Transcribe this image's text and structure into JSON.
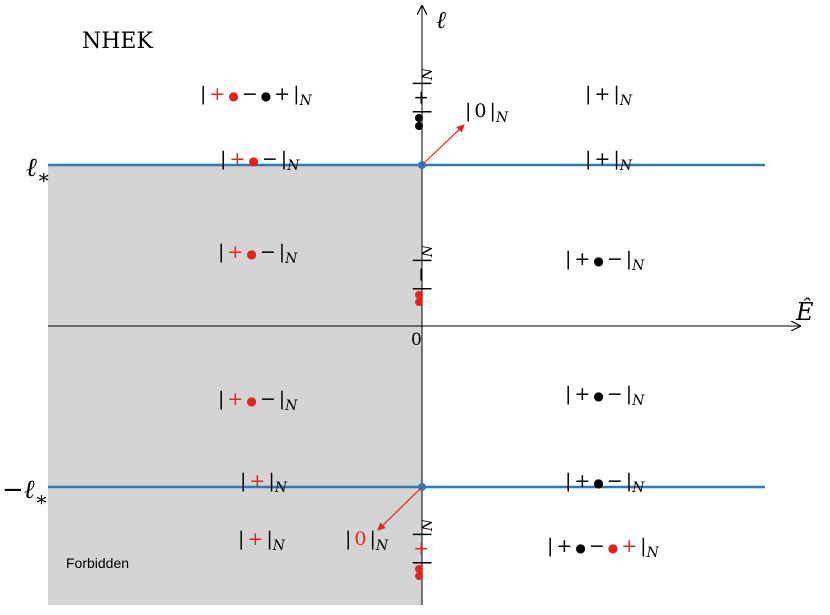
{
  "title": "NHEK",
  "axes": {
    "y_label": "ℓ",
    "x_label": "Ê",
    "origin": "0",
    "upper": {
      "text": "ℓ",
      "sub": "∗"
    },
    "lower": {
      "text": "−ℓ",
      "sub": "∗"
    }
  },
  "region": "Forbidden",
  "labels": [
    {
      "parts": [
        {
          "text": "|",
          "color": "#000"
        },
        {
          "text": "+",
          "color": "#e8231c"
        },
        {
          "text": "●",
          "color": "#e8231c"
        },
        {
          "text": "−",
          "color": "#000"
        },
        {
          "text": "●",
          "color": "#000"
        },
        {
          "text": "+",
          "color": "#000"
        },
        {
          "text": "|",
          "color": "#000"
        }
      ],
      "sub": "N"
    },
    {
      "parts": [
        {
          "text": "|",
          "color": "#000"
        },
        {
          "text": "+",
          "color": "#000"
        },
        {
          "text": "|",
          "color": "#000"
        }
      ],
      "sub": "N"
    },
    {
      "parts": [
        {
          "text": "|",
          "color": "#000"
        },
        {
          "text": "+",
          "color": "#e8231c"
        },
        {
          "text": "●",
          "color": "#e8231c"
        },
        {
          "text": "−",
          "color": "#000"
        },
        {
          "text": "|",
          "color": "#000"
        }
      ],
      "sub": "N"
    },
    {
      "parts": [
        {
          "text": "|",
          "color": "#000"
        },
        {
          "text": "+",
          "color": "#000"
        },
        {
          "text": "|",
          "color": "#000"
        }
      ],
      "sub": "N"
    },
    {
      "parts": [
        {
          "text": "|",
          "color": "#000"
        },
        {
          "text": "+",
          "color": "#e8231c"
        },
        {
          "text": "●",
          "color": "#e8231c"
        },
        {
          "text": "−",
          "color": "#000"
        },
        {
          "text": "|",
          "color": "#000"
        }
      ],
      "sub": "N"
    },
    {
      "parts": [
        {
          "text": "|",
          "color": "#000"
        },
        {
          "text": "+",
          "color": "#000"
        },
        {
          "text": "●",
          "color": "#000"
        },
        {
          "text": "−",
          "color": "#000"
        },
        {
          "text": "|",
          "color": "#000"
        }
      ],
      "sub": "N"
    },
    {
      "parts": [
        {
          "text": "|",
          "color": "#000"
        },
        {
          "text": "+",
          "color": "#e8231c"
        },
        {
          "text": "●",
          "color": "#e8231c"
        },
        {
          "text": "−",
          "color": "#000"
        },
        {
          "text": "|",
          "color": "#000"
        }
      ],
      "sub": "N"
    },
    {
      "parts": [
        {
          "text": "|",
          "color": "#000"
        },
        {
          "text": "+",
          "color": "#000"
        },
        {
          "text": "●",
          "color": "#000"
        },
        {
          "text": "−",
          "color": "#000"
        },
        {
          "text": "|",
          "color": "#000"
        }
      ],
      "sub": "N"
    },
    {
      "parts": [
        {
          "text": "|",
          "color": "#000"
        },
        {
          "text": "+",
          "color": "#e8231c"
        },
        {
          "text": "|",
          "color": "#000"
        }
      ],
      "sub": "N"
    },
    {
      "parts": [
        {
          "text": "|",
          "color": "#000"
        },
        {
          "text": "+",
          "color": "#000"
        },
        {
          "text": "●",
          "color": "#000"
        },
        {
          "text": "−",
          "color": "#000"
        },
        {
          "text": "|",
          "color": "#000"
        }
      ],
      "sub": "N"
    },
    {
      "parts": [
        {
          "text": "|",
          "color": "#000"
        },
        {
          "text": "+",
          "color": "#e8231c"
        },
        {
          "text": "|",
          "color": "#000"
        }
      ],
      "sub": "N"
    },
    {
      "parts": [
        {
          "text": "|",
          "color": "#000"
        },
        {
          "text": "+",
          "color": "#000"
        },
        {
          "text": "●",
          "color": "#000"
        },
        {
          "text": "−",
          "color": "#000"
        },
        {
          "text": "●",
          "color": "#e8231c"
        },
        {
          "text": "+",
          "color": "#e8231c"
        },
        {
          "text": "|",
          "color": "#000"
        }
      ],
      "sub": "N"
    },
    {
      "parts": [
        {
          "text": "|",
          "color": "#000"
        },
        {
          "text": "0",
          "color": "#000"
        },
        {
          "text": "|",
          "color": "#000"
        }
      ],
      "sub": "N"
    },
    {
      "parts": [
        {
          "text": "|",
          "color": "#000"
        },
        {
          "text": "0",
          "color": "#e8231c"
        },
        {
          "text": "|",
          "color": "#000"
        }
      ],
      "sub": "N"
    }
  ],
  "vertical_labels": [
    {
      "parts": [
        {
          "text": "|",
          "color": "#000"
        },
        {
          "text": "+",
          "color": "#000"
        },
        {
          "text": "|",
          "color": "#000"
        }
      ],
      "sub": "N"
    },
    {
      "parts": [
        {
          "text": "|",
          "color": "#000"
        },
        {
          "text": "−",
          "color": "#000"
        },
        {
          "text": "|",
          "color": "#000"
        }
      ],
      "sub": "N"
    },
    {
      "parts": [
        {
          "text": "|",
          "color": "#000"
        },
        {
          "text": "+",
          "color": "#e8231c"
        },
        {
          "text": "|",
          "color": "#000"
        }
      ],
      "sub": "N"
    }
  ]
}
